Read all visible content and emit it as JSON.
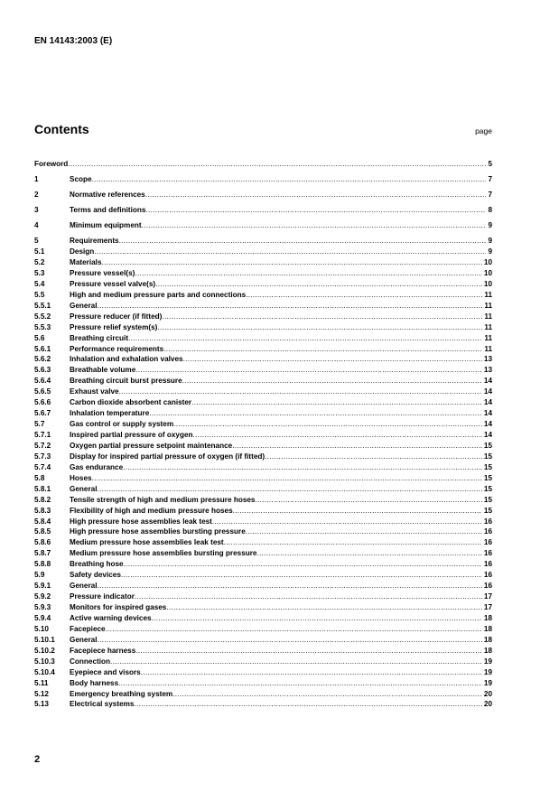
{
  "header": {
    "doc_id": "EN 14143:2003 (E)"
  },
  "contents": {
    "title": "Contents",
    "page_label": "page"
  },
  "entries": [
    {
      "num": "",
      "title": "Foreword",
      "page": "5",
      "level": 0
    },
    {
      "num": "1",
      "title": "Scope",
      "page": "7",
      "level": 0
    },
    {
      "num": "2",
      "title": "Normative references",
      "page": "7",
      "level": 0
    },
    {
      "num": "3",
      "title": "Terms and definitions",
      "page": "8",
      "level": 0
    },
    {
      "num": "4",
      "title": "Minimum equipment",
      "page": "9",
      "level": 0
    },
    {
      "num": "5",
      "title": "Requirements",
      "page": "9",
      "level": 0
    },
    {
      "num": "5.1",
      "title": "Design",
      "page": "9",
      "level": 1
    },
    {
      "num": "5.2",
      "title": "Materials",
      "page": "10",
      "level": 1
    },
    {
      "num": "5.3",
      "title": "Pressure vessel(s)",
      "page": "10",
      "level": 1
    },
    {
      "num": "5.4",
      "title": "Pressure vessel valve(s)",
      "page": "10",
      "level": 1
    },
    {
      "num": "5.5",
      "title": "High and medium pressure parts and connections",
      "page": "11",
      "level": 1
    },
    {
      "num": "5.5.1",
      "title": "General",
      "page": "11",
      "level": 2
    },
    {
      "num": "5.5.2",
      "title": "Pressure reducer (if fitted)",
      "page": "11",
      "level": 2
    },
    {
      "num": "5.5.3",
      "title": "Pressure relief system(s)",
      "page": "11",
      "level": 2
    },
    {
      "num": "5.6",
      "title": "Breathing circuit",
      "page": "11",
      "level": 1
    },
    {
      "num": "5.6.1",
      "title": "Performance requirements",
      "page": "11",
      "level": 2
    },
    {
      "num": "5.6.2",
      "title": "Inhalation and exhalation valves",
      "page": "13",
      "level": 2
    },
    {
      "num": "5.6.3",
      "title": "Breathable volume",
      "page": "13",
      "level": 2
    },
    {
      "num": "5.6.4",
      "title": "Breathing circuit burst pressure",
      "page": "14",
      "level": 2
    },
    {
      "num": "5.6.5",
      "title": "Exhaust valve",
      "page": "14",
      "level": 2
    },
    {
      "num": "5.6.6",
      "title": "Carbon dioxide absorbent canister",
      "page": "14",
      "level": 2
    },
    {
      "num": "5.6.7",
      "title": "Inhalation temperature",
      "page": "14",
      "level": 2
    },
    {
      "num": "5.7",
      "title": "Gas control or supply system",
      "page": "14",
      "level": 1
    },
    {
      "num": "5.7.1",
      "title": "Inspired partial pressure of oxygen",
      "page": "14",
      "level": 2
    },
    {
      "num": "5.7.2",
      "title": "Oxygen partial pressure setpoint maintenance",
      "page": "15",
      "level": 2
    },
    {
      "num": "5.7.3",
      "title": "Display for inspired partial pressure of oxygen (if fitted)",
      "page": "15",
      "level": 2
    },
    {
      "num": "5.7.4",
      "title": "Gas endurance",
      "page": "15",
      "level": 2
    },
    {
      "num": "5.8",
      "title": "Hoses",
      "page": "15",
      "level": 1
    },
    {
      "num": "5.8.1",
      "title": "General",
      "page": "15",
      "level": 2
    },
    {
      "num": "5.8.2",
      "title": "Tensile strength of high and medium pressure hoses",
      "page": "15",
      "level": 2
    },
    {
      "num": "5.8.3",
      "title": "Flexibility of high and medium pressure hoses",
      "page": "15",
      "level": 2
    },
    {
      "num": "5.8.4",
      "title": "High pressure hose assemblies leak test",
      "page": "16",
      "level": 2
    },
    {
      "num": "5.8.5",
      "title": "High pressure hose assemblies bursting pressure",
      "page": "16",
      "level": 2
    },
    {
      "num": "5.8.6",
      "title": "Medium pressure hose assemblies leak test",
      "page": "16",
      "level": 2
    },
    {
      "num": "5.8.7",
      "title": "Medium pressure hose assemblies bursting pressure",
      "page": "16",
      "level": 2
    },
    {
      "num": "5.8.8",
      "title": "Breathing hose",
      "page": "16",
      "level": 2
    },
    {
      "num": "5.9",
      "title": "Safety devices",
      "page": "16",
      "level": 1
    },
    {
      "num": "5.9.1",
      "title": "General",
      "page": "16",
      "level": 2
    },
    {
      "num": "5.9.2",
      "title": "Pressure indicator",
      "page": "17",
      "level": 2
    },
    {
      "num": "5.9.3",
      "title": "Monitors for inspired gases",
      "page": "17",
      "level": 2
    },
    {
      "num": "5.9.4",
      "title": "Active warning devices",
      "page": "18",
      "level": 2
    },
    {
      "num": "5.10",
      "title": "Facepiece",
      "page": "18",
      "level": 1
    },
    {
      "num": "5.10.1",
      "title": "General",
      "page": "18",
      "level": 2
    },
    {
      "num": "5.10.2",
      "title": "Facepiece harness",
      "page": "18",
      "level": 2
    },
    {
      "num": "5.10.3",
      "title": "Connection",
      "page": "19",
      "level": 2
    },
    {
      "num": "5.10.4",
      "title": "Eyepiece and visors",
      "page": "19",
      "level": 2
    },
    {
      "num": "5.11",
      "title": "Body harness",
      "page": "19",
      "level": 1
    },
    {
      "num": "5.12",
      "title": "Emergency breathing system",
      "page": "20",
      "level": 1
    },
    {
      "num": "5.13",
      "title": "Electrical systems",
      "page": "20",
      "level": 1
    }
  ],
  "footer": {
    "page_number": "2"
  }
}
